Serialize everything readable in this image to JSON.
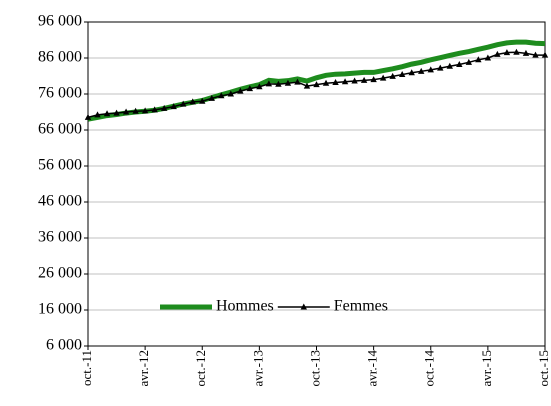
{
  "chart_data": {
    "type": "line",
    "categories": [
      "oct.-11",
      null,
      null,
      null,
      null,
      null,
      "avr.-12",
      null,
      null,
      null,
      null,
      null,
      "oct.-12",
      null,
      null,
      null,
      null,
      null,
      "avr.-13",
      null,
      null,
      null,
      null,
      null,
      "oct.-13",
      null,
      null,
      null,
      null,
      null,
      "avr.-14",
      null,
      null,
      null,
      null,
      null,
      "oct.-14",
      null,
      null,
      null,
      null,
      null,
      "avr.-15",
      null,
      null,
      null,
      null,
      null,
      "oct.-15"
    ],
    "series": [
      {
        "name": "Hommes",
        "color": "#1e8c1e",
        "values": [
          69000,
          69500,
          70000,
          70300,
          70700,
          71000,
          71200,
          71500,
          72000,
          72600,
          73200,
          73700,
          74200,
          75000,
          75800,
          76500,
          77300,
          78000,
          78600,
          79800,
          79500,
          79700,
          80200,
          79600,
          80500,
          81200,
          81500,
          81600,
          81800,
          82000,
          82000,
          82500,
          83000,
          83600,
          84300,
          84800,
          85500,
          86100,
          86700,
          87300,
          87800,
          88400,
          89000,
          89700,
          90200,
          90400,
          90400,
          90100,
          90000
        ]
      },
      {
        "name": "Femmes",
        "color": "#000000",
        "marker": "triangle",
        "values": [
          69500,
          70200,
          70500,
          70700,
          71000,
          71200,
          71300,
          71600,
          72000,
          72500,
          73200,
          73800,
          74000,
          74800,
          75500,
          76000,
          76800,
          77500,
          78000,
          78800,
          78700,
          79000,
          79300,
          78200,
          78600,
          79000,
          79200,
          79400,
          79600,
          79800,
          80000,
          80400,
          80900,
          81400,
          81900,
          82300,
          82700,
          83200,
          83700,
          84200,
          84800,
          85500,
          86000,
          87000,
          87500,
          87600,
          87300,
          86800,
          86800
        ]
      }
    ],
    "ylim": [
      6000,
      96000
    ],
    "yticks": [
      {
        "value": 6000,
        "label": "6 000"
      },
      {
        "value": 16000,
        "label": "16 000"
      },
      {
        "value": 26000,
        "label": "26 000"
      },
      {
        "value": 36000,
        "label": "36 000"
      },
      {
        "value": 46000,
        "label": "46 000"
      },
      {
        "value": 56000,
        "label": "56 000"
      },
      {
        "value": 66000,
        "label": "66 000"
      },
      {
        "value": 76000,
        "label": "76 000"
      },
      {
        "value": 86000,
        "label": "86 000"
      },
      {
        "value": 96000,
        "label": "96 000"
      }
    ],
    "grid": true,
    "legend": "bottom"
  }
}
